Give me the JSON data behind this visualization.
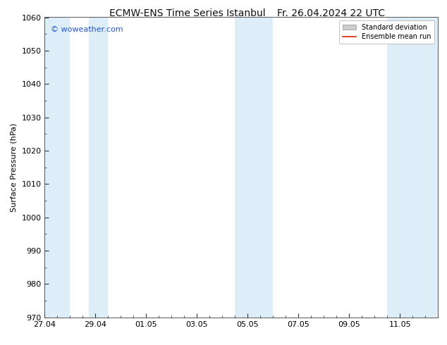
{
  "title_left": "ECMW-ENS Time Series Istanbul",
  "title_right": "Fr. 26.04.2024 22 UTC",
  "ylabel": "Surface Pressure (hPa)",
  "ylim": [
    970,
    1060
  ],
  "yticks": [
    970,
    980,
    990,
    1000,
    1010,
    1020,
    1030,
    1040,
    1050,
    1060
  ],
  "xtick_labels": [
    "27.04",
    "29.04",
    "01.05",
    "03.05",
    "05.05",
    "07.05",
    "09.05",
    "11.05"
  ],
  "xtick_positions_days": [
    0,
    2,
    4,
    6,
    8,
    10,
    12,
    14
  ],
  "total_days": 15.5,
  "shaded_bands": [
    {
      "start_day": 0.0,
      "end_day": 1.0
    },
    {
      "start_day": 1.75,
      "end_day": 2.5
    },
    {
      "start_day": 7.5,
      "end_day": 9.0
    },
    {
      "start_day": 13.5,
      "end_day": 15.5
    }
  ],
  "band_color": "#ddeef8",
  "watermark_text": "© woweather.com",
  "watermark_color": "#2255cc",
  "legend_std_label": "Standard deviation",
  "legend_mean_label": "Ensemble mean run",
  "legend_mean_color": "#dd2200",
  "legend_std_facecolor": "#cccccc",
  "legend_std_edgecolor": "#aaaaaa",
  "bg_color": "#ffffff",
  "tick_color": "#333333",
  "spine_color": "#555555",
  "title_fontsize": 10,
  "ylabel_fontsize": 8,
  "tick_fontsize": 8,
  "watermark_fontsize": 8,
  "legend_fontsize": 7
}
